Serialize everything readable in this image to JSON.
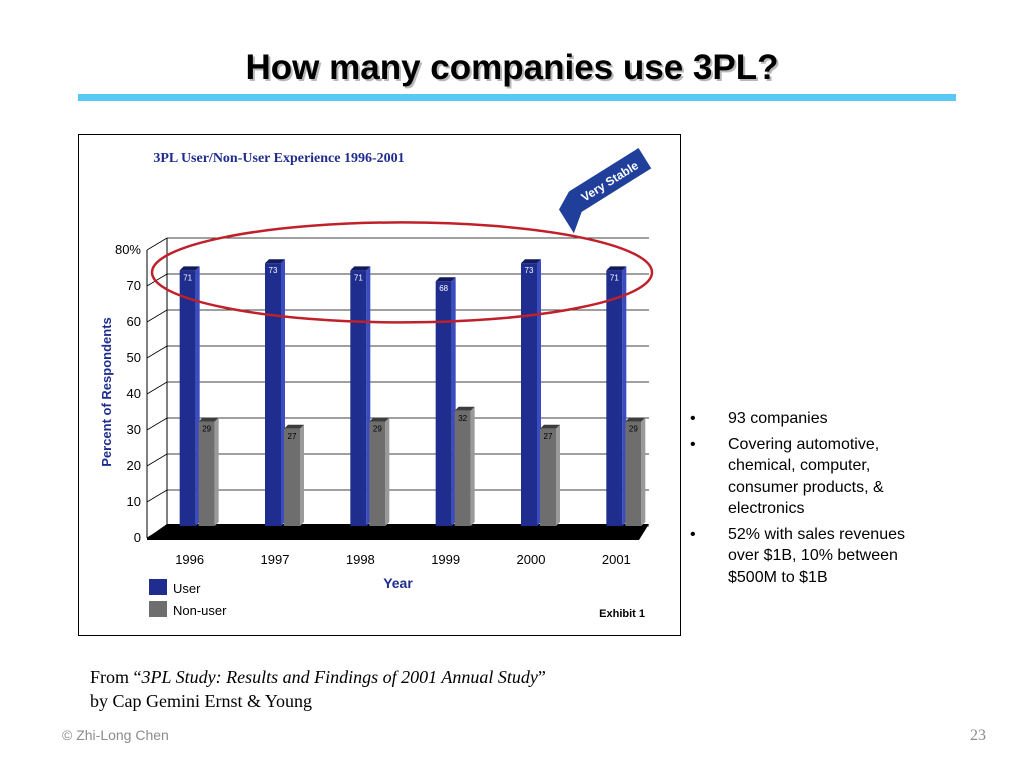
{
  "slide": {
    "title": "How many companies use 3PL?",
    "footer_left": "© Zhi-Long Chen",
    "page_number": "23"
  },
  "citation": {
    "prefix": "From “",
    "study": "3PL Study: Results and Findings of 2001 Annual Study",
    "suffix": "”",
    "line2": "by Cap Gemini Ernst & Young"
  },
  "bullets": [
    "93 companies",
    "Covering automotive, chemical, computer, consumer products, & electronics",
    "52% with sales revenues over $1B, 10% between $500M to $1B"
  ],
  "bullet_symbol": "•",
  "chart_data": {
    "type": "bar",
    "title": "3PL User/Non-User Experience 1996-2001",
    "xlabel": "Year",
    "ylabel": "Percent of Respondents",
    "ylim": [
      0,
      80
    ],
    "yticks": [
      "0",
      "10",
      "20",
      "30",
      "40",
      "50",
      "60",
      "70",
      "80%"
    ],
    "categories": [
      "1996",
      "1997",
      "1998",
      "1999",
      "2000",
      "2001"
    ],
    "series": [
      {
        "name": "User",
        "values": [
          71,
          73,
          71,
          68,
          73,
          71
        ],
        "color": "#1f2d8f"
      },
      {
        "name": "Non-user",
        "values": [
          29,
          27,
          29,
          32,
          27,
          29
        ],
        "color": "#6e6e6e"
      }
    ],
    "annotation": "Very Stable",
    "exhibit_label": "Exhibit 1",
    "grid": true,
    "legend_position": "bottom-left"
  },
  "colors": {
    "title_rule": "#59c8f5",
    "chart_title": "#1f2d8f",
    "highlight_ellipse": "#c0202a",
    "arrow": "#1f3f9a"
  }
}
